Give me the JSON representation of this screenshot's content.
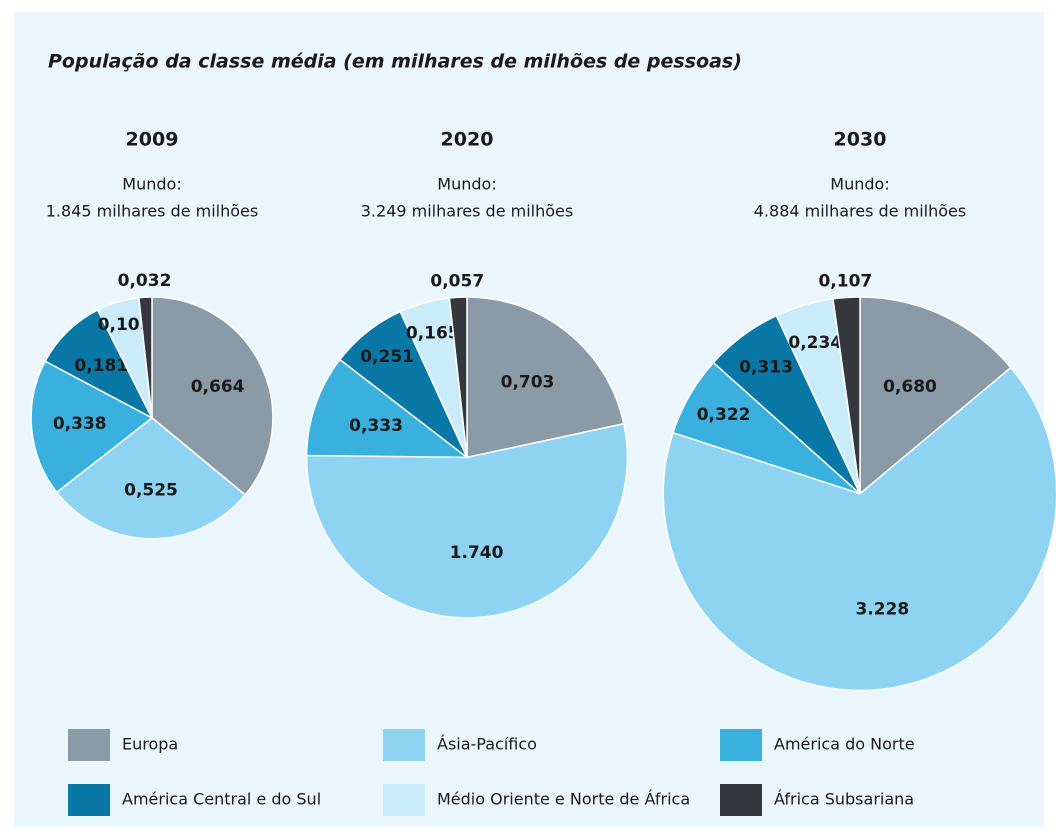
{
  "title": "População da classe média (em milhares de milhões de pessoas)",
  "chart_data": [
    {
      "type": "pie",
      "title": "2009",
      "subtitle": [
        "Mundo:",
        "1.845 milhares de milhões"
      ],
      "categories": [
        "Europa",
        "Ásia-Pacífico",
        "América do Norte",
        "América Central e do Sul",
        "Médio Oriente e Norte de África",
        "África Subsariana"
      ],
      "colors": [
        "#8a9aa6",
        "#8fd3f3",
        "#3ab0de",
        "#0a78a6",
        "#c9ebfa",
        "#34383c"
      ],
      "values": [
        0.664,
        0.525,
        0.338,
        0.181,
        0.105,
        0.032
      ],
      "value_labels": [
        "0,664",
        "0,525",
        "0,338",
        "0,181",
        "0,105",
        "0,032"
      ]
    },
    {
      "type": "pie",
      "title": "2020",
      "subtitle": [
        "Mundo:",
        "3.249 milhares de milhões"
      ],
      "categories": [
        "Europa",
        "Ásia-Pacífico",
        "América do Norte",
        "América Central e do Sul",
        "Médio Oriente e Norte de África",
        "África Subsariana"
      ],
      "colors": [
        "#8a9aa6",
        "#8fd3f3",
        "#3ab0de",
        "#0a78a6",
        "#c9ebfa",
        "#34383c"
      ],
      "values": [
        0.703,
        1.74,
        0.333,
        0.251,
        0.165,
        0.057
      ],
      "value_labels": [
        "0,703",
        "1.740",
        "0,333",
        "0,251",
        "0,165",
        "0,057"
      ]
    },
    {
      "type": "pie",
      "title": "2030",
      "subtitle": [
        "Mundo:",
        "4.884 milhares de milhões"
      ],
      "categories": [
        "Europa",
        "Ásia-Pacífico",
        "América do Norte",
        "América Central e do Sul",
        "Médio Oriente e Norte de África",
        "África Subsariana"
      ],
      "colors": [
        "#8a9aa6",
        "#8fd3f3",
        "#3ab0de",
        "#0a78a6",
        "#c9ebfa",
        "#34383c"
      ],
      "values": [
        0.68,
        3.228,
        0.322,
        0.313,
        0.234,
        0.107
      ],
      "value_labels": [
        "0,680",
        "3.228",
        "0,322",
        "0,313",
        "0,234",
        "0,107"
      ]
    }
  ]
}
